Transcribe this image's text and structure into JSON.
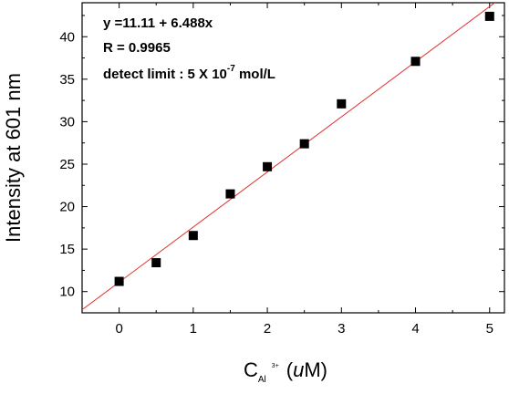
{
  "chart_data": {
    "type": "scatter",
    "xlabel": {
      "main": "C",
      "sub": "Al",
      "sup": "3+",
      "unit_open": "(",
      "unit_italic": "u",
      "unit_rest": "M)"
    },
    "ylabel": "Intensity at 601 nm",
    "xlim": [
      -0.5,
      5.2
    ],
    "ylim": [
      7.5,
      44
    ],
    "xticks": [
      "0",
      "1",
      "2",
      "3",
      "4",
      "5"
    ],
    "yticks": [
      "10",
      "15",
      "20",
      "25",
      "30",
      "35",
      "40"
    ],
    "points": [
      {
        "x": 0,
        "y": 11.2
      },
      {
        "x": 0.5,
        "y": 13.4
      },
      {
        "x": 1.0,
        "y": 16.6
      },
      {
        "x": 1.5,
        "y": 21.5
      },
      {
        "x": 2.0,
        "y": 24.7
      },
      {
        "x": 2.5,
        "y": 27.4
      },
      {
        "x": 3.0,
        "y": 32.1
      },
      {
        "x": 4.0,
        "y": 37.1
      },
      {
        "x": 5.0,
        "y": 42.4
      }
    ],
    "fit": {
      "intercept": 11.11,
      "slope": 6.488,
      "color": "#e0302a"
    },
    "marker_color": "#000000",
    "annotations": {
      "equation": "y =11.11 + 6.488x",
      "r_value": "R = 0.9965",
      "limit_prefix": "detect limit : 5 X 10",
      "limit_exp": "-7",
      "limit_suffix": " mol/L"
    }
  }
}
